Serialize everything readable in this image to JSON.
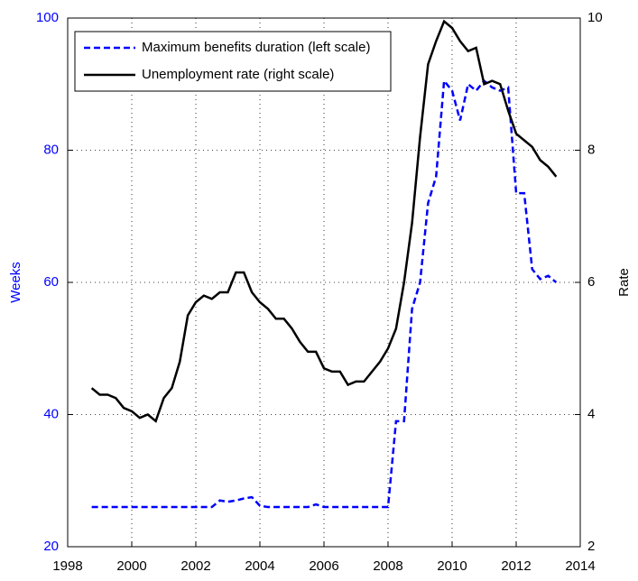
{
  "chart_data": {
    "type": "line",
    "x": [
      1998.75,
      1999,
      1999.25,
      1999.5,
      1999.75,
      2000,
      2000.25,
      2000.5,
      2000.75,
      2001,
      2001.25,
      2001.5,
      2001.75,
      2002,
      2002.25,
      2002.5,
      2002.75,
      2003,
      2003.25,
      2003.5,
      2003.75,
      2004,
      2004.25,
      2004.5,
      2004.75,
      2005,
      2005.25,
      2005.5,
      2005.75,
      2006,
      2006.25,
      2006.5,
      2006.75,
      2007,
      2007.25,
      2007.5,
      2007.75,
      2008,
      2008.25,
      2008.5,
      2008.75,
      2009,
      2009.25,
      2009.5,
      2009.75,
      2010,
      2010.25,
      2010.5,
      2010.75,
      2011,
      2011.25,
      2011.5,
      2011.75,
      2012,
      2012.25,
      2012.5,
      2012.75,
      2013,
      2013.25
    ],
    "series": [
      {
        "name": "Maximum benefits duration (left scale)",
        "color": "#0000ff",
        "dash": true,
        "values": [
          26,
          26,
          26,
          26,
          26,
          26,
          26,
          26,
          26,
          26,
          26,
          26,
          26,
          26,
          26,
          26,
          27,
          26.8,
          27,
          27.3,
          27.5,
          26.2,
          26,
          26,
          26,
          26,
          26,
          26,
          26.4,
          26,
          26,
          26,
          26,
          26,
          26,
          26,
          26,
          26,
          39,
          39,
          56,
          60,
          72,
          76,
          90.5,
          89,
          84.5,
          90,
          89,
          90.5,
          89.5,
          89,
          89.5,
          73.5,
          73.5,
          62,
          60.5,
          61,
          60
        ]
      },
      {
        "name": "Unemployment rate (right scale)",
        "color": "#000000",
        "axis": "y2",
        "values": [
          4.4,
          4.3,
          4.3,
          4.25,
          4.1,
          4.05,
          3.95,
          4.0,
          3.9,
          4.25,
          4.4,
          4.8,
          5.5,
          5.7,
          5.8,
          5.75,
          5.85,
          5.85,
          6.15,
          6.15,
          5.85,
          5.7,
          5.6,
          5.45,
          5.45,
          5.3,
          5.1,
          4.95,
          4.95,
          4.7,
          4.65,
          4.65,
          4.45,
          4.5,
          4.5,
          4.65,
          4.8,
          5.0,
          5.3,
          6.0,
          6.9,
          8.2,
          9.3,
          9.65,
          9.95,
          9.85,
          9.65,
          9.5,
          9.55,
          9.0,
          9.05,
          9.0,
          8.6,
          8.25,
          8.15,
          8.05,
          7.85,
          7.75,
          7.6
        ]
      }
    ],
    "xlim": [
      1998,
      2014
    ],
    "xticks": [
      1998,
      2000,
      2002,
      2004,
      2006,
      2008,
      2010,
      2012,
      2014
    ],
    "ylim": [
      20,
      100
    ],
    "yticks": [
      20,
      40,
      60,
      80,
      100
    ],
    "y2lim": [
      2,
      10
    ],
    "y2ticks": [
      2,
      4,
      6,
      8,
      10
    ],
    "ylabel": "Weeks",
    "y2label": "Rate",
    "grid": true,
    "legend": "upper left"
  }
}
